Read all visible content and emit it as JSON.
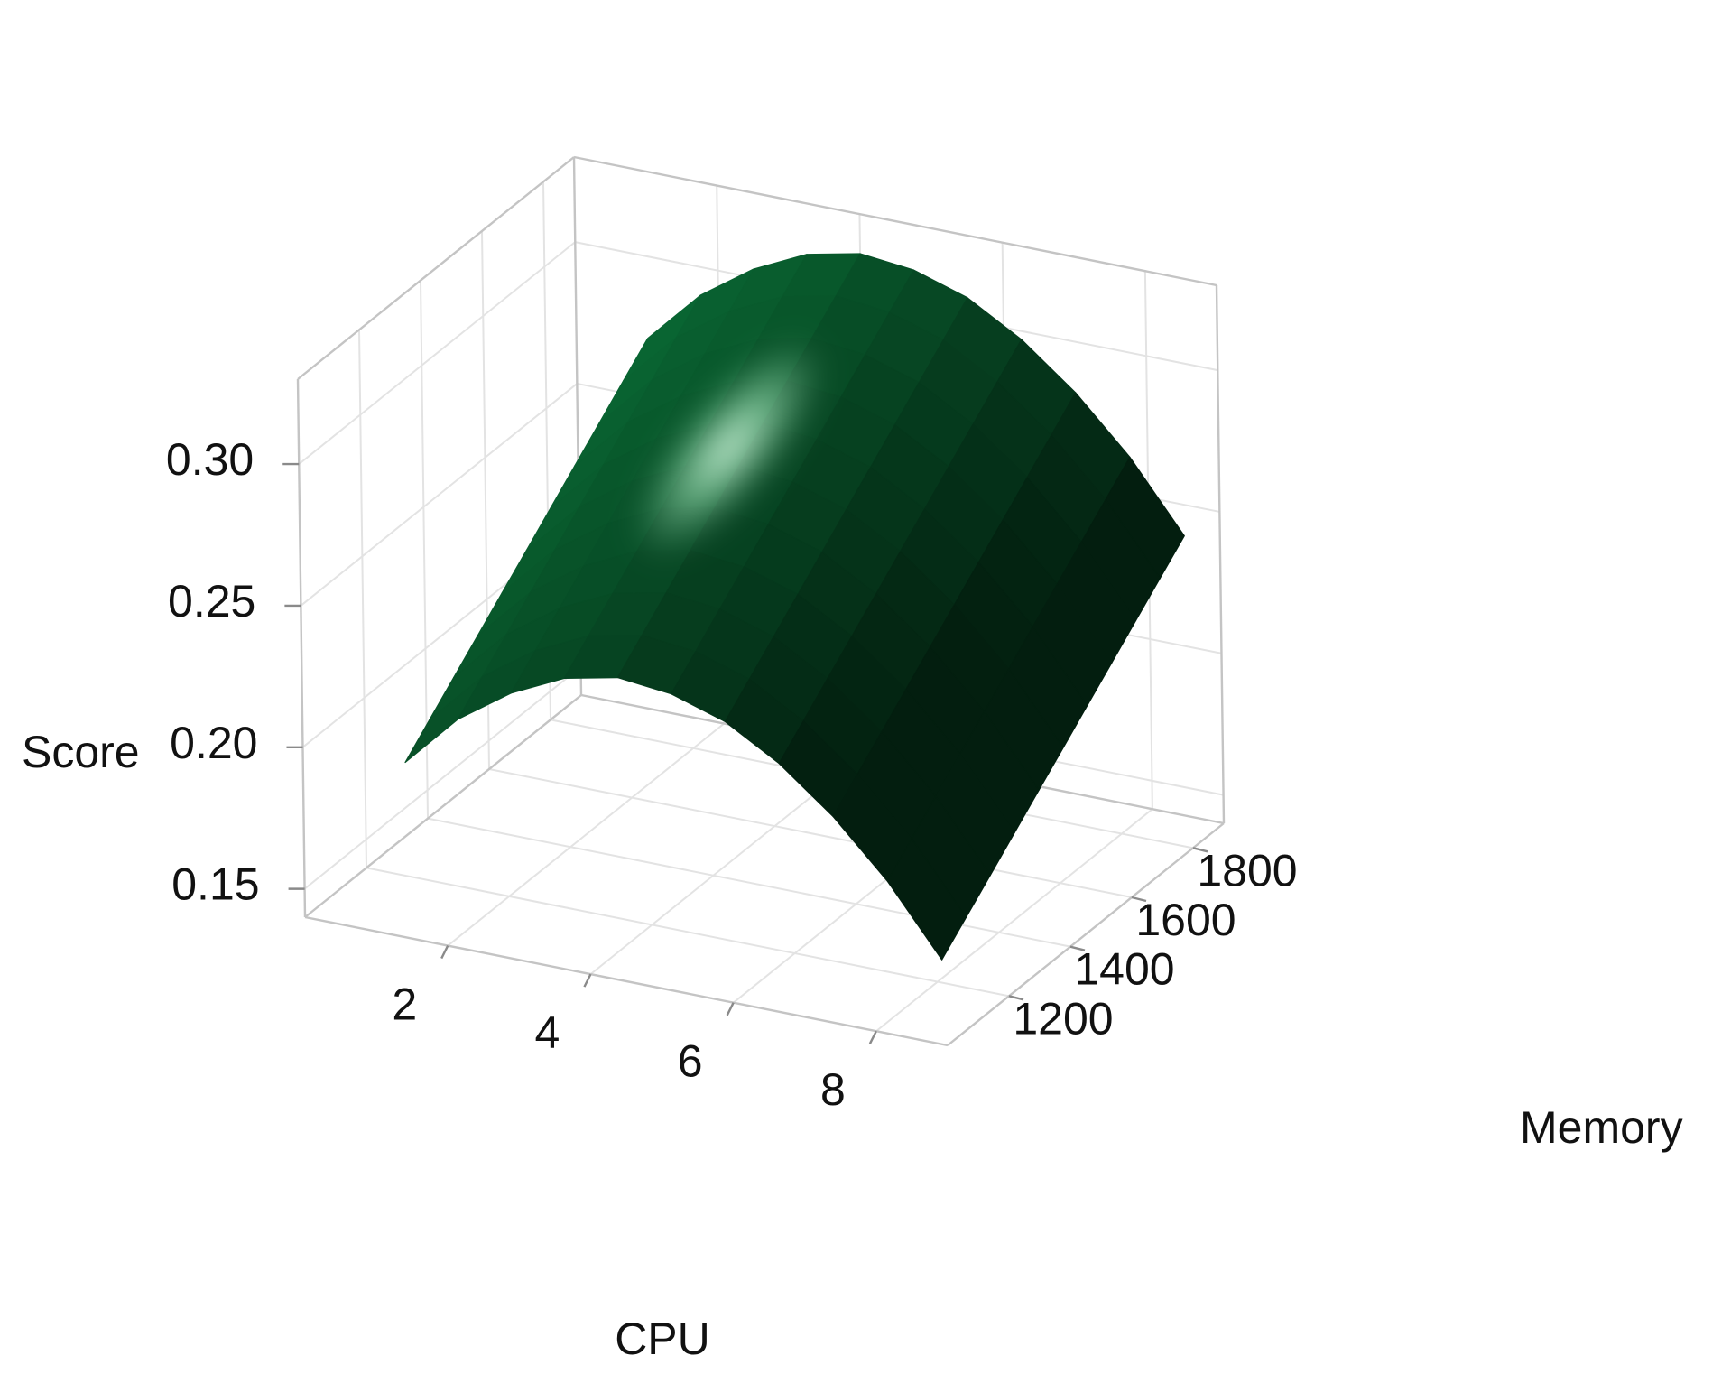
{
  "chart_data": {
    "type": "surface",
    "xlabel": "CPU",
    "ylabel": "Memory",
    "zlabel": "Score",
    "xlim": [
      0,
      9
    ],
    "ylim": [
      1000,
      1900
    ],
    "zlim": [
      0.14,
      0.33
    ],
    "x_ticks": [
      2,
      4,
      6,
      8
    ],
    "y_ticks": [
      1200,
      1400,
      1600,
      1800
    ],
    "z_ticks": [
      0.15,
      0.2,
      0.25,
      0.3
    ],
    "x_tick_labels": [
      "2",
      "4",
      "6",
      "8"
    ],
    "y_tick_labels": [
      "1200",
      "1400",
      "1600",
      "1800"
    ],
    "z_tick_labels": [
      "0.15",
      "0.20",
      "0.25",
      "0.30"
    ],
    "grid": true,
    "surface_color": "#0a6b35",
    "highlight_color": "#c8ffd8",
    "surface": {
      "x": [
        1,
        1.75,
        2.5,
        3.25,
        4,
        4.75,
        5.5,
        6.25,
        7,
        7.75,
        8.5
      ],
      "y": [
        1100,
        1180,
        1260,
        1340,
        1420,
        1500,
        1580,
        1660,
        1740,
        1820,
        1900
      ],
      "z": [
        [
          0.191,
          0.21,
          0.223,
          0.232,
          0.236,
          0.234,
          0.228,
          0.217,
          0.202,
          0.183,
          0.159
        ],
        [
          0.199,
          0.218,
          0.231,
          0.24,
          0.244,
          0.242,
          0.236,
          0.225,
          0.21,
          0.191,
          0.167
        ],
        [
          0.207,
          0.226,
          0.239,
          0.248,
          0.252,
          0.25,
          0.244,
          0.233,
          0.218,
          0.199,
          0.175
        ],
        [
          0.215,
          0.234,
          0.247,
          0.256,
          0.26,
          0.258,
          0.252,
          0.241,
          0.226,
          0.207,
          0.183
        ],
        [
          0.223,
          0.242,
          0.255,
          0.264,
          0.268,
          0.266,
          0.26,
          0.249,
          0.234,
          0.215,
          0.191
        ],
        [
          0.231,
          0.25,
          0.263,
          0.272,
          0.276,
          0.274,
          0.268,
          0.257,
          0.242,
          0.223,
          0.199
        ],
        [
          0.239,
          0.258,
          0.271,
          0.28,
          0.284,
          0.282,
          0.276,
          0.265,
          0.25,
          0.231,
          0.207
        ],
        [
          0.247,
          0.266,
          0.279,
          0.288,
          0.292,
          0.29,
          0.284,
          0.273,
          0.258,
          0.239,
          0.215
        ],
        [
          0.255,
          0.274,
          0.287,
          0.296,
          0.3,
          0.298,
          0.292,
          0.281,
          0.266,
          0.247,
          0.223
        ],
        [
          0.263,
          0.282,
          0.295,
          0.304,
          0.308,
          0.306,
          0.3,
          0.289,
          0.274,
          0.255,
          0.231
        ],
        [
          0.271,
          0.29,
          0.303,
          0.312,
          0.316,
          0.314,
          0.308,
          0.297,
          0.282,
          0.263,
          0.239
        ]
      ]
    }
  }
}
